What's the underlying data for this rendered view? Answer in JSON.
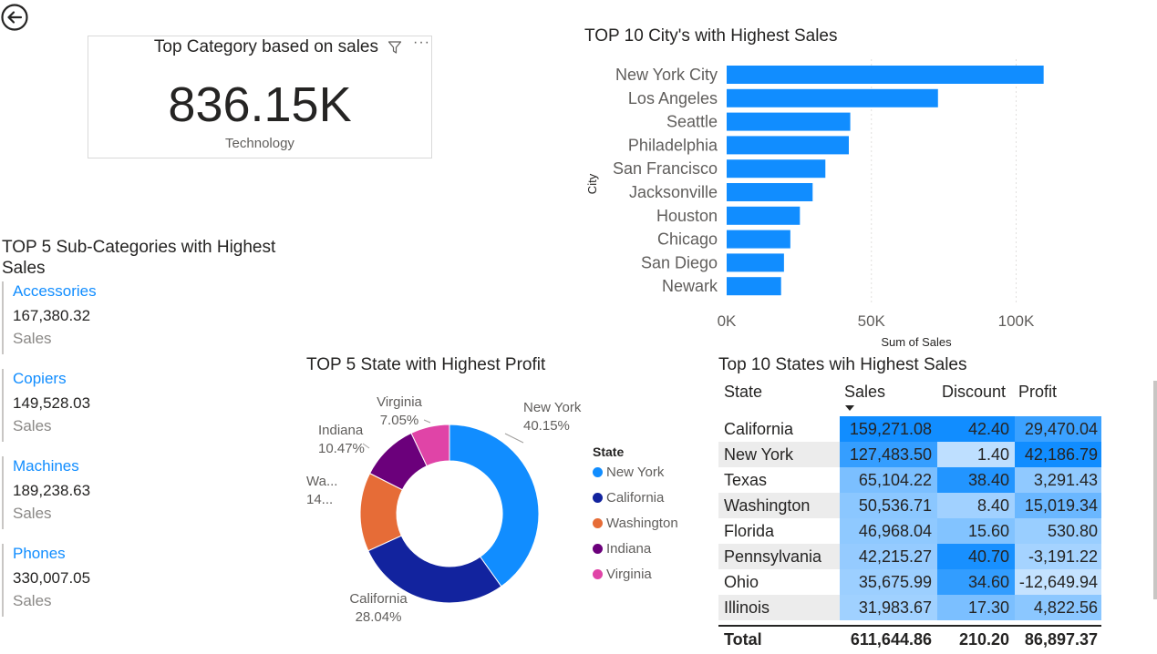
{
  "back_button": {
    "icon": "arrow-left-circle-icon"
  },
  "card": {
    "title": "Top Category based on sales",
    "value": "836.15K",
    "category": "Technology",
    "filter_icon": "filter-icon",
    "more_icon": "more-options-icon",
    "more_label": "···"
  },
  "kpis": {
    "title": "TOP 5 Sub-Categories with Highest Sales",
    "items": [
      {
        "label": "Accessories",
        "value": "167,380.32",
        "unit": "Sales"
      },
      {
        "label": "Copiers",
        "value": "149,528.03",
        "unit": "Sales"
      },
      {
        "label": "Machines",
        "value": "189,238.63",
        "unit": "Sales"
      },
      {
        "label": "Phones",
        "value": "330,007.05",
        "unit": "Sales"
      }
    ]
  },
  "chart_data": [
    {
      "type": "bar",
      "orientation": "horizontal",
      "title": "TOP 10 City's with Highest Sales",
      "xlabel": "Sum of Sales",
      "ylabel": "City",
      "categories": [
        "New York City",
        "Los Angeles",
        "Seattle",
        "Philadelphia",
        "San Francisco",
        "Jacksonville",
        "Houston",
        "Chicago",
        "San Diego",
        "Newark"
      ],
      "values": [
        109500,
        73000,
        42700,
        42200,
        34100,
        29700,
        25300,
        22000,
        19800,
        18800
      ],
      "xlim": [
        0,
        120000
      ],
      "xticks": [
        {
          "value": 0,
          "label": "0K"
        },
        {
          "value": 50000,
          "label": "50K"
        },
        {
          "value": 100000,
          "label": "100K"
        }
      ],
      "color": "#118DFF",
      "grid": true
    },
    {
      "type": "pie",
      "donut": true,
      "title": "TOP 5 State with Highest Profit",
      "legend_title": "State",
      "legend_position": "right",
      "slices": [
        {
          "name": "New York",
          "percent": 40.15,
          "percent_label": "40.15%",
          "label": "New York",
          "color": "#118DFF"
        },
        {
          "name": "California",
          "percent": 28.04,
          "percent_label": "28.04%",
          "label": "California",
          "color": "#12239E"
        },
        {
          "name": "Washington",
          "percent": 14.29,
          "percent_label": "14...",
          "label": "Wa...",
          "color": "#E66C37"
        },
        {
          "name": "Indiana",
          "percent": 10.47,
          "percent_label": "10.47%",
          "label": "Indiana",
          "color": "#6B007B"
        },
        {
          "name": "Virginia",
          "percent": 7.05,
          "percent_label": "7.05%",
          "label": "Virginia",
          "color": "#E044A7"
        }
      ]
    },
    {
      "type": "table",
      "title": "Top 10 States wih Highest Sales",
      "columns": [
        "State",
        "Sales",
        "Discount",
        "Profit"
      ],
      "sort_icon": "sort-descending-icon",
      "rows": [
        {
          "state": "California",
          "sales": "159,271.08",
          "discount": "42.40",
          "profit": "29,470.04",
          "sales_v": 159271.08,
          "discount_v": 42.4,
          "profit_v": 29470.04
        },
        {
          "state": "New York",
          "sales": "127,483.50",
          "discount": "1.40",
          "profit": "42,186.79",
          "sales_v": 127483.5,
          "discount_v": 1.4,
          "profit_v": 42186.79
        },
        {
          "state": "Texas",
          "sales": "65,104.22",
          "discount": "38.40",
          "profit": "3,291.43",
          "sales_v": 65104.22,
          "discount_v": 38.4,
          "profit_v": 3291.43
        },
        {
          "state": "Washington",
          "sales": "50,536.71",
          "discount": "8.40",
          "profit": "15,019.34",
          "sales_v": 50536.71,
          "discount_v": 8.4,
          "profit_v": 15019.34
        },
        {
          "state": "Florida",
          "sales": "46,968.04",
          "discount": "15.60",
          "profit": "530.80",
          "sales_v": 46968.04,
          "discount_v": 15.6,
          "profit_v": 530.8
        },
        {
          "state": "Pennsylvania",
          "sales": "42,215.27",
          "discount": "40.70",
          "profit": "-3,191.22",
          "sales_v": 42215.27,
          "discount_v": 40.7,
          "profit_v": -3191.22
        },
        {
          "state": "Ohio",
          "sales": "35,675.99",
          "discount": "34.60",
          "profit": "-12,649.94",
          "sales_v": 35675.99,
          "discount_v": 34.6,
          "profit_v": -12649.94
        },
        {
          "state": "Illinois",
          "sales": "31,983.67",
          "discount": "17.30",
          "profit": "4,822.56",
          "sales_v": 31983.67,
          "discount_v": 17.3,
          "profit_v": 4822.56
        }
      ],
      "total": {
        "label": "Total",
        "sales": "611,644.86",
        "discount": "210.20",
        "profit": "86,897.37"
      }
    }
  ]
}
